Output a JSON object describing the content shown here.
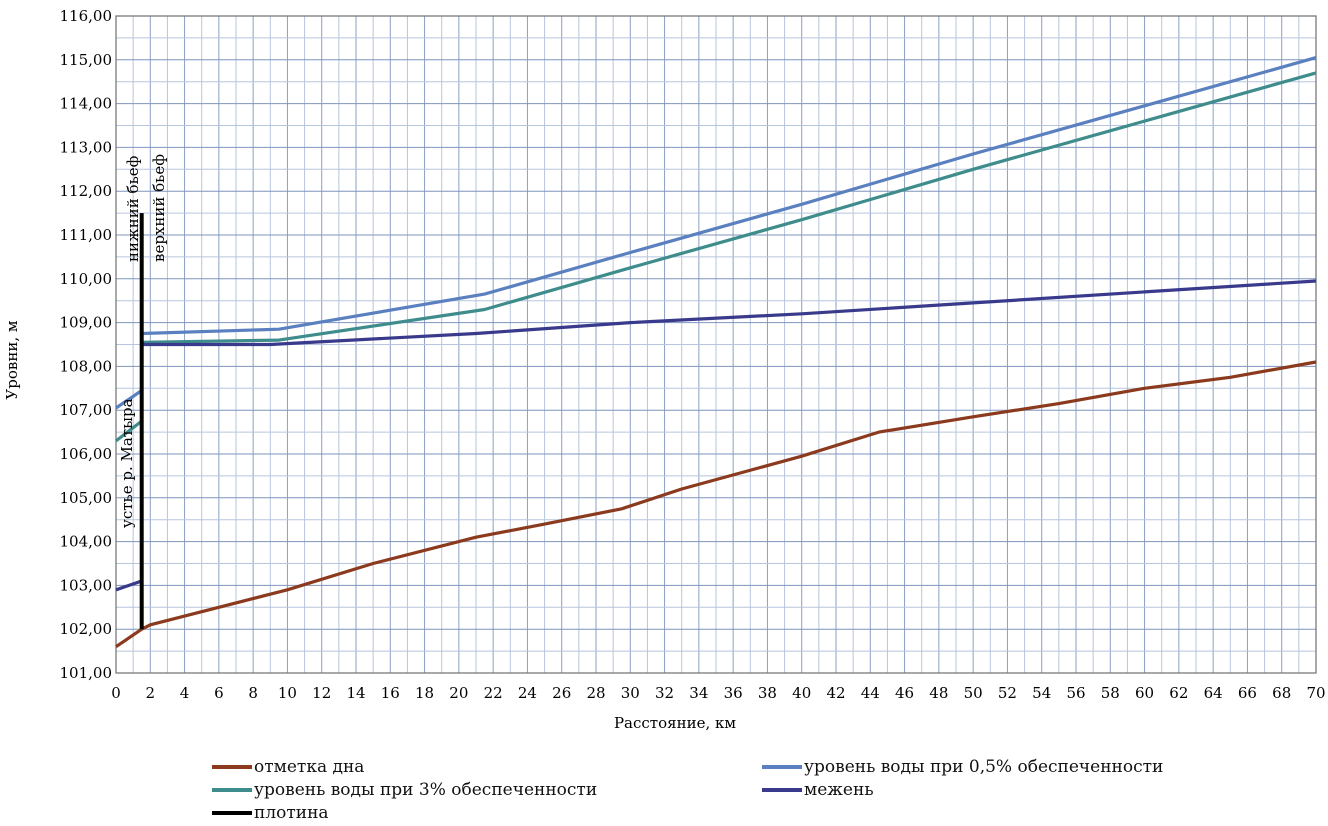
{
  "chart_data": {
    "type": "line",
    "xlabel": "Расстояние, км",
    "ylabel": "Уровни, м",
    "xlim": [
      0,
      70
    ],
    "ylim": [
      101,
      116
    ],
    "x_ticks": [
      "0",
      "2",
      "4",
      "6",
      "8",
      "10",
      "12",
      "14",
      "16",
      "18",
      "20",
      "22",
      "24",
      "26",
      "28",
      "30",
      "32",
      "34",
      "36",
      "38",
      "40",
      "42",
      "44",
      "46",
      "48",
      "50",
      "52",
      "54",
      "56",
      "58",
      "60",
      "62",
      "64",
      "66",
      "68",
      "70"
    ],
    "y_ticks": [
      "101,00",
      "102,00",
      "103,00",
      "104,00",
      "105,00",
      "106,00",
      "107,00",
      "108,00",
      "109,00",
      "110,00",
      "111,00",
      "112,00",
      "113,00",
      "114,00",
      "115,00",
      "116,00"
    ],
    "grid": true,
    "annotations": [
      "устье р. Матыра",
      "нижний бьеф",
      "верхний бьеф"
    ],
    "series": [
      {
        "name": "отметка дна",
        "color": "#8b3a1e",
        "x": [
          0,
          1.5,
          2,
          5,
          10,
          15,
          21,
          25,
          29.5,
          33,
          40,
          44.5,
          50,
          55,
          60,
          65,
          70
        ],
        "y": [
          101.6,
          102.0,
          102.1,
          102.4,
          102.9,
          103.5,
          104.1,
          104.4,
          104.75,
          105.2,
          105.95,
          106.5,
          106.85,
          107.15,
          107.5,
          107.75,
          108.1
        ]
      },
      {
        "name": "уровень воды при 0,5% обеспеченности",
        "color": "#5b80c0",
        "segments": [
          {
            "x": [
              0,
              1.5
            ],
            "y": [
              107.05,
              107.45
            ]
          },
          {
            "x": [
              1.5,
              9.5,
              21.5,
              30,
              40,
              50,
              60,
              70
            ],
            "y": [
              108.75,
              108.85,
              109.65,
              110.6,
              111.7,
              112.85,
              113.95,
              115.05
            ]
          }
        ]
      },
      {
        "name": "уровень воды при 3% обеспеченности",
        "color": "#3f8c8c",
        "segments": [
          {
            "x": [
              0,
              1.5
            ],
            "y": [
              106.3,
              106.75
            ]
          },
          {
            "x": [
              1.5,
              9.5,
              21.5,
              30,
              40,
              50,
              60,
              70
            ],
            "y": [
              108.55,
              108.6,
              109.3,
              110.25,
              111.35,
              112.5,
              113.6,
              114.7
            ]
          }
        ]
      },
      {
        "name": "межень",
        "color": "#3a3a8c",
        "segments": [
          {
            "x": [
              0,
              1.5
            ],
            "y": [
              102.9,
              103.1
            ]
          },
          {
            "x": [
              1.5,
              9,
              21,
              30,
              40,
              50,
              60,
              70
            ],
            "y": [
              108.5,
              108.5,
              108.75,
              109.0,
              109.2,
              109.45,
              109.7,
              109.95
            ]
          }
        ]
      },
      {
        "name": "плотина",
        "color": "#000000",
        "x": [
          1.5,
          1.5
        ],
        "y": [
          102.0,
          111.5
        ]
      }
    ]
  },
  "legend": [
    {
      "label": "отметка дна",
      "color": "#8b3a1e"
    },
    {
      "label": "уровень воды при 0,5% обеспеченности",
      "color": "#5b80c0"
    },
    {
      "label": "уровень воды при 3% обеспеченности",
      "color": "#3f8c8c"
    },
    {
      "label": "межень",
      "color": "#3a3a8c"
    },
    {
      "label": "плотина",
      "color": "#000000"
    }
  ]
}
